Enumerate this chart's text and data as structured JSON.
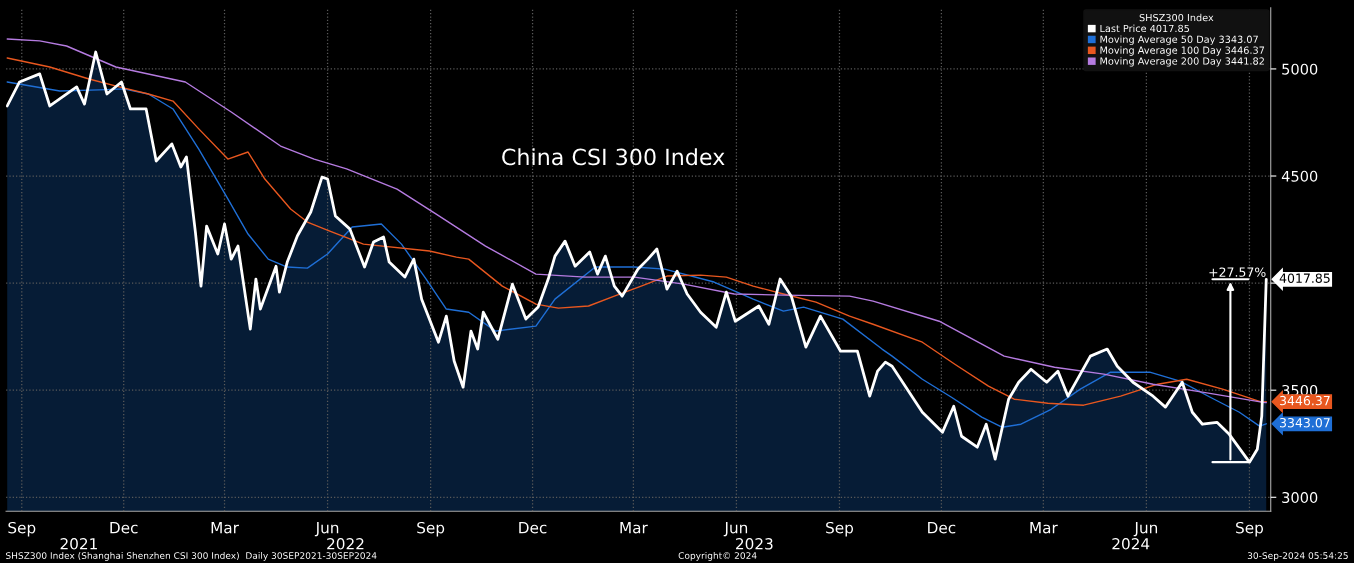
{
  "chart_data": {
    "type": "line",
    "title": "China CSI 300 Index",
    "legend_title": "SHSZ300 Index",
    "legend": "top right",
    "grid": true,
    "xlim": [
      "2021-09-01",
      "2024-10-04"
    ],
    "xticks": [
      {
        "value": "2021-09-15",
        "label": "Sep"
      },
      {
        "value": "2021-12-15",
        "label": "Dec"
      },
      {
        "value": "2022-03-15",
        "label": "Mar"
      },
      {
        "value": "2022-06-15",
        "label": "Jun"
      },
      {
        "value": "2022-09-15",
        "label": "Sep"
      },
      {
        "value": "2022-12-15",
        "label": "Dec"
      },
      {
        "value": "2023-03-15",
        "label": "Mar"
      },
      {
        "value": "2023-06-15",
        "label": "Jun"
      },
      {
        "value": "2023-09-15",
        "label": "Sep"
      },
      {
        "value": "2023-12-15",
        "label": "Dec"
      },
      {
        "value": "2024-03-15",
        "label": "Mar"
      },
      {
        "value": "2024-06-15",
        "label": "Jun"
      },
      {
        "value": "2024-09-15",
        "label": "Sep"
      }
    ],
    "x2lim": [
      "2021-09-01",
      "2024-10-04"
    ],
    "x2ticks": [
      {
        "value": "2021-11-05",
        "label": "2021"
      },
      {
        "value": "2022-07-01",
        "label": "2022"
      },
      {
        "value": "2023-07-01",
        "label": "2023"
      },
      {
        "value": "2024-06-01",
        "label": "2024"
      }
    ],
    "ylim": [
      2935,
      5285
    ],
    "yticks": [
      3000,
      3500,
      {
        "value": 4000,
        "label": null
      },
      4500,
      5000
    ],
    "series": [
      {
        "type": "area",
        "name": "Last Price 4017.85",
        "color": "#ffffff",
        "x": [
          "2021-09-02",
          "2021-09-13",
          "2021-10-01",
          "2021-10-10",
          "2021-11-03",
          "2021-11-10",
          "2021-11-20",
          "2021-11-30",
          "2021-12-13",
          "2021-12-21",
          "2022-01-04",
          "2022-01-13",
          "2022-01-27",
          "2022-02-04",
          "2022-02-09",
          "2022-02-17",
          "2022-02-22",
          "2022-02-27",
          "2022-03-09",
          "2022-03-15",
          "2022-03-21",
          "2022-03-27",
          "2022-04-07",
          "2022-04-12",
          "2022-04-16",
          "2022-04-30",
          "2022-05-03",
          "2022-05-10",
          "2022-05-19",
          "2022-05-31",
          "2022-06-10",
          "2022-06-15",
          "2022-06-22",
          "2022-07-05",
          "2022-07-18",
          "2022-07-26",
          "2022-08-04",
          "2022-08-09",
          "2022-08-23",
          "2022-08-31",
          "2022-09-07",
          "2022-09-22",
          "2022-09-29",
          "2022-10-06",
          "2022-10-14",
          "2022-10-21",
          "2022-10-27",
          "2022-11-01",
          "2022-11-14",
          "2022-11-27",
          "2022-12-09",
          "2022-12-20",
          "2022-12-29",
          "2023-01-04",
          "2023-01-13",
          "2023-01-22",
          "2023-02-04",
          "2023-02-11",
          "2023-02-18",
          "2023-02-26",
          "2023-03-05",
          "2023-03-19",
          "2023-03-28",
          "2023-04-05",
          "2023-04-14",
          "2023-04-23",
          "2023-05-02",
          "2023-05-14",
          "2023-05-28",
          "2023-06-06",
          "2023-06-14",
          "2023-07-05",
          "2023-07-14",
          "2023-07-24",
          "2023-08-03",
          "2023-08-16",
          "2023-08-29",
          "2023-09-16",
          "2023-10-01",
          "2023-10-12",
          "2023-10-19",
          "2023-10-26",
          "2023-11-01",
          "2023-11-28",
          "2023-12-16",
          "2023-12-26",
          "2024-01-02",
          "2024-01-16",
          "2024-01-24",
          "2024-02-01",
          "2024-02-13",
          "2024-02-22",
          "2024-03-04",
          "2024-03-18",
          "2024-03-28",
          "2024-04-06",
          "2024-04-26",
          "2024-05-11",
          "2024-05-20",
          "2024-06-03",
          "2024-06-21",
          "2024-07-02",
          "2024-07-17",
          "2024-07-26",
          "2024-08-04",
          "2024-08-17",
          "2024-08-28",
          "2024-09-15",
          "2024-09-22",
          "2024-09-26",
          "2024-09-30"
        ],
        "values": [
          4827,
          4939,
          4977,
          4827,
          4916,
          4836,
          5079,
          4883,
          4939,
          4813,
          4813,
          4570,
          4650,
          4542,
          4589,
          4238,
          3986,
          4266,
          4136,
          4276,
          4112,
          4173,
          3785,
          4019,
          3879,
          4079,
          3958,
          4098,
          4220,
          4332,
          4495,
          4486,
          4313,
          4252,
          4075,
          4192,
          4215,
          4098,
          4028,
          4112,
          3925,
          3724,
          3846,
          3636,
          3514,
          3776,
          3692,
          3864,
          3738,
          3995,
          3832,
          3888,
          4019,
          4126,
          4196,
          4079,
          4145,
          4042,
          4126,
          3986,
          3939,
          4065,
          4112,
          4159,
          3972,
          4056,
          3949,
          3864,
          3794,
          3958,
          3822,
          3893,
          3808,
          4019,
          3939,
          3701,
          3846,
          3682,
          3682,
          3472,
          3589,
          3631,
          3612,
          3397,
          3304,
          3425,
          3285,
          3234,
          3341,
          3178,
          3458,
          3537,
          3598,
          3537,
          3589,
          3472,
          3659,
          3692,
          3612,
          3537,
          3472,
          3421,
          3537,
          3397,
          3341,
          3350,
          3294,
          3164,
          3224,
          3379,
          4017.85
        ],
        "value_labels": [
          null,
          null,
          null,
          null,
          null,
          null,
          null,
          null,
          null,
          null,
          null,
          null,
          null,
          null,
          null,
          null,
          null,
          null,
          null,
          null,
          null,
          null,
          null,
          null,
          null,
          null,
          null,
          null,
          null,
          null,
          null,
          null,
          null,
          null,
          null,
          null,
          null,
          null,
          null,
          null,
          null,
          null,
          null,
          null,
          null,
          null,
          null,
          null,
          null,
          null,
          null,
          null,
          null,
          null,
          null,
          null,
          null,
          null,
          null,
          null,
          null,
          null,
          null,
          null,
          null,
          null,
          null,
          null,
          null,
          null,
          null,
          null,
          null,
          null,
          null,
          null,
          null,
          null,
          null,
          null,
          null,
          null,
          null,
          null,
          null,
          null,
          null,
          null,
          null,
          null,
          null,
          null,
          null,
          null,
          null,
          null,
          null,
          null,
          null,
          null,
          null,
          null,
          null,
          null,
          null,
          null,
          null,
          null,
          null,
          null,
          "4017.85"
        ]
      },
      {
        "name": "Moving Average 50 Day 3343.07",
        "color": "#1f6fd6",
        "x": [
          "2021-09-02",
          "2021-10-19",
          "2021-11-23",
          "2021-12-15",
          "2022-01-06",
          "2022-01-28",
          "2022-02-20",
          "2022-03-18",
          "2022-04-05",
          "2022-04-23",
          "2022-05-10",
          "2022-05-28",
          "2022-06-15",
          "2022-07-07",
          "2022-08-02",
          "2022-08-20",
          "2022-09-11",
          "2022-09-29",
          "2022-10-19",
          "2022-11-12",
          "2022-12-18",
          "2023-01-04",
          "2023-02-09",
          "2023-03-16",
          "2023-04-12",
          "2023-05-26",
          "2023-06-30",
          "2023-07-27",
          "2023-08-14",
          "2023-09-18",
          "2023-10-23",
          "2023-11-01",
          "2023-11-28",
          "2023-12-24",
          "2024-01-20",
          "2024-02-07",
          "2024-02-24",
          "2024-03-22",
          "2024-04-17",
          "2024-05-14",
          "2024-06-18",
          "2024-07-15",
          "2024-08-11",
          "2024-09-06",
          "2024-09-24",
          "2024-09-30"
        ],
        "values": [
          4939,
          4897,
          4902,
          4907,
          4883,
          4813,
          4626,
          4393,
          4229,
          4112,
          4075,
          4070,
          4136,
          4262,
          4276,
          4182,
          4019,
          3879,
          3864,
          3776,
          3799,
          3925,
          4075,
          4075,
          4065,
          4005,
          3925,
          3869,
          3888,
          3832,
          3692,
          3659,
          3551,
          3467,
          3374,
          3327,
          3341,
          3411,
          3505,
          3584,
          3584,
          3542,
          3467,
          3397,
          3332,
          3343.07
        ],
        "value_labels": [
          null,
          null,
          null,
          null,
          null,
          null,
          null,
          null,
          null,
          null,
          null,
          null,
          null,
          null,
          null,
          null,
          null,
          null,
          null,
          null,
          null,
          null,
          null,
          null,
          null,
          null,
          null,
          null,
          null,
          null,
          null,
          null,
          null,
          null,
          null,
          null,
          null,
          null,
          null,
          null,
          null,
          null,
          null,
          null,
          null,
          "3343.07"
        ]
      },
      {
        "name": "Moving Average 100 Day 3446.37",
        "color": "#e8571f",
        "x": [
          "2021-09-02",
          "2021-10-10",
          "2021-11-14",
          "2021-12-11",
          "2022-01-06",
          "2022-01-28",
          "2022-02-20",
          "2022-03-18",
          "2022-04-05",
          "2022-04-20",
          "2022-05-13",
          "2022-05-28",
          "2022-06-17",
          "2022-07-17",
          "2022-09-14",
          "2022-10-08",
          "2022-10-19",
          "2022-11-18",
          "2022-12-18",
          "2023-01-07",
          "2023-02-03",
          "2023-02-26",
          "2023-03-22",
          "2023-04-14",
          "2023-05-14",
          "2023-06-06",
          "2023-06-30",
          "2023-07-27",
          "2023-08-25",
          "2023-09-24",
          "2023-10-15",
          "2023-11-28",
          "2023-12-27",
          "2024-01-26",
          "2024-02-18",
          "2024-03-19",
          "2024-04-20",
          "2024-05-23",
          "2024-06-25",
          "2024-07-21",
          "2024-08-22",
          "2024-09-26",
          "2024-09-30"
        ],
        "values": [
          5051,
          5009,
          4953,
          4916,
          4883,
          4850,
          4720,
          4579,
          4612,
          4486,
          4346,
          4285,
          4243,
          4182,
          4150,
          4121,
          4112,
          3986,
          3902,
          3883,
          3893,
          3939,
          3986,
          4033,
          4037,
          4028,
          3986,
          3949,
          3911,
          3846,
          3808,
          3724,
          3621,
          3519,
          3458,
          3439,
          3430,
          3472,
          3528,
          3551,
          3505,
          3444,
          3446.37
        ],
        "value_labels": [
          null,
          null,
          null,
          null,
          null,
          null,
          null,
          null,
          null,
          null,
          null,
          null,
          null,
          null,
          null,
          null,
          null,
          null,
          null,
          null,
          null,
          null,
          null,
          null,
          null,
          null,
          null,
          null,
          null,
          null,
          null,
          null,
          null,
          null,
          null,
          null,
          null,
          null,
          null,
          null,
          null,
          null,
          "3446.37"
        ]
      },
      {
        "name": "Moving Average 200 Day 3441.82",
        "color": "#b57be0",
        "x": [
          "2021-09-02",
          "2021-10-01",
          "2021-10-25",
          "2021-12-08",
          "2022-02-08",
          "2022-03-21",
          "2022-05-04",
          "2022-06-03",
          "2022-07-02",
          "2022-08-16",
          "2022-09-20",
          "2022-11-03",
          "2022-12-18",
          "2023-01-31",
          "2023-03-16",
          "2023-04-29",
          "2023-06-13",
          "2023-07-27",
          "2023-09-24",
          "2023-10-15",
          "2023-12-13",
          "2024-02-09",
          "2024-03-25",
          "2024-05-08",
          "2024-06-21",
          "2024-08-04",
          "2024-09-26",
          "2024-09-30"
        ],
        "values": [
          5140,
          5131,
          5107,
          5009,
          4939,
          4799,
          4640,
          4579,
          4533,
          4439,
          4322,
          4173,
          4042,
          4028,
          4028,
          3995,
          3949,
          3944,
          3939,
          3916,
          3822,
          3659,
          3607,
          3575,
          3528,
          3491,
          3444,
          3441.82
        ]
      }
    ],
    "annotations": [
      "SHSZ300 Index (Shanghai Shenzhen CSI 300 Index)  Daily 30SEP2021-30SEP2024",
      "Copyright© 2024",
      "30-Sep-2024 05:54:25",
      {
        "text": "+27.57%",
        "x": "2024-09-30",
        "y": 4017.85
      }
    ]
  }
}
